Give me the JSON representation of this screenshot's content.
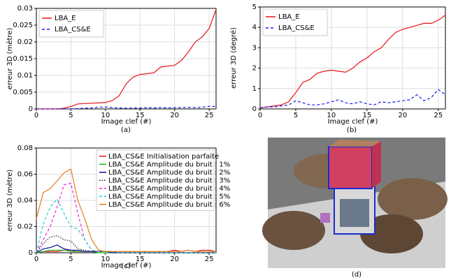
{
  "chart_data": [
    {
      "type": "line",
      "caption": "(a)",
      "x_label": "Image clef (#)",
      "y_label": "erreur 3D (mètre)",
      "x": [
        0,
        1,
        2,
        3,
        4,
        5,
        6,
        7,
        8,
        9,
        10,
        11,
        12,
        13,
        14,
        15,
        16,
        17,
        18,
        19,
        20,
        21,
        22,
        23,
        24,
        25,
        26
      ],
      "xlim": [
        0,
        26
      ],
      "xticks": [
        0,
        5,
        10,
        15,
        20,
        25
      ],
      "ylim": [
        0,
        0.03
      ],
      "yticks": [
        0,
        0.005,
        0.01,
        0.015,
        0.02,
        0.025,
        0.03
      ],
      "grid": true,
      "legend": "upper left",
      "series": [
        {
          "name": "LBA_E",
          "color": "#e8141a",
          "style": "solid",
          "marker": "plus",
          "values": [
            0,
            0,
            0,
            0,
            0.0002,
            0.0007,
            0.0015,
            0.0016,
            0.0017,
            0.0018,
            0.0019,
            0.0025,
            0.004,
            0.0075,
            0.0095,
            0.0103,
            0.0105,
            0.0108,
            0.0125,
            0.0128,
            0.013,
            0.0145,
            0.017,
            0.02,
            0.0215,
            0.024,
            0.0297
          ]
        },
        {
          "name": "LBA_CS&E",
          "color": "#1a1aee",
          "style": "dashed",
          "marker": "x",
          "values": [
            0,
            0,
            0,
            0,
            0,
            0,
            0.0001,
            0.0002,
            0.0003,
            0.0005,
            0.0006,
            0.0004,
            0.0003,
            0.0002,
            0.0003,
            0.0003,
            0.0004,
            0.0003,
            0.0004,
            0.0003,
            0.0004,
            0.0004,
            0.0005,
            0.0004,
            0.0005,
            0.0008,
            0.0007
          ]
        }
      ]
    },
    {
      "type": "line",
      "caption": "(b)",
      "x_label": "Image clef (#)",
      "y_label": "erreur 3D (degré)",
      "x": [
        0,
        1,
        2,
        3,
        4,
        5,
        6,
        7,
        8,
        9,
        10,
        11,
        12,
        13,
        14,
        15,
        16,
        17,
        18,
        19,
        20,
        21,
        22,
        23,
        24,
        25,
        26
      ],
      "xlim": [
        0,
        26
      ],
      "xticks": [
        0,
        5,
        10,
        15,
        20,
        25
      ],
      "ylim": [
        0,
        5
      ],
      "yticks": [
        0,
        1,
        2,
        3,
        4,
        5
      ],
      "grid": true,
      "legend": "upper left",
      "series": [
        {
          "name": "LBA_E",
          "color": "#e8141a",
          "style": "solid",
          "marker": "plus",
          "values": [
            0.05,
            0.1,
            0.15,
            0.2,
            0.35,
            0.8,
            1.3,
            1.45,
            1.75,
            1.85,
            1.9,
            1.85,
            1.8,
            2.0,
            2.3,
            2.5,
            2.8,
            3.0,
            3.4,
            3.75,
            3.9,
            4.0,
            4.1,
            4.2,
            4.2,
            4.35,
            4.6
          ]
        },
        {
          "name": "LBA_CS&E",
          "color": "#1a1aee",
          "style": "dashed",
          "marker": "x",
          "values": [
            0.05,
            0.1,
            0.1,
            0.15,
            0.2,
            0.4,
            0.3,
            0.2,
            0.2,
            0.25,
            0.35,
            0.45,
            0.3,
            0.25,
            0.35,
            0.25,
            0.2,
            0.35,
            0.3,
            0.35,
            0.4,
            0.45,
            0.7,
            0.4,
            0.55,
            0.95,
            0.7
          ]
        }
      ]
    },
    {
      "type": "line",
      "caption": "(c)",
      "x_label": "Image clef (#)",
      "y_label": "erreur 3D (mètre)",
      "x": [
        0,
        1,
        2,
        3,
        4,
        5,
        6,
        7,
        8,
        9,
        10,
        11,
        12,
        13,
        14,
        15,
        16,
        17,
        18,
        19,
        20,
        21,
        22,
        23,
        24,
        25,
        26
      ],
      "xlim": [
        0,
        26
      ],
      "xticks": [
        0,
        5,
        10,
        15,
        20,
        25
      ],
      "ylim": [
        0,
        0.08
      ],
      "yticks": [
        0,
        0.02,
        0.04,
        0.06,
        0.08
      ],
      "grid": true,
      "legend": "upper right",
      "series": [
        {
          "name": "LBA_CS&E Initialisation parfaite",
          "color": "#e8141a",
          "style": "solid",
          "marker": "plus",
          "values": [
            0,
            0.001,
            0.001,
            0.001,
            0.002,
            0.002,
            0.001,
            0.001,
            0.001,
            0.001,
            0.001,
            0.001,
            0.001,
            0.001,
            0.001,
            0.001,
            0.001,
            0.001,
            0.001,
            0.001,
            0.002,
            0.001,
            0.002,
            0.001,
            0.002,
            0.002,
            0.001
          ]
        },
        {
          "name": "LBA_CS&E Amplitude du bruit : 1%",
          "color": "#22bb22",
          "style": "solid",
          "marker": "x",
          "values": [
            0,
            0.001,
            0.002,
            0.002,
            0.002,
            0.001,
            0.001,
            0.001,
            0.001,
            0,
            0,
            0,
            0,
            0,
            0,
            0,
            0,
            0,
            0,
            0,
            0,
            0,
            0,
            0,
            0,
            0,
            0
          ]
        },
        {
          "name": "LBA_CS&E Amplitude du bruit : 2%",
          "color": "#111199",
          "style": "solid",
          "marker": "dot",
          "values": [
            0,
            0.003,
            0.004,
            0.006,
            0.003,
            0.002,
            0.002,
            0.001,
            0.001,
            0.001,
            0.001,
            0,
            0,
            0,
            0,
            0,
            0,
            0,
            0,
            0,
            0,
            0,
            0,
            0,
            0,
            0,
            0
          ]
        },
        {
          "name": "LBA_CS&E Amplitude du bruit : 3%",
          "color": "#222222",
          "style": "dotted",
          "marker": "dot",
          "values": [
            0,
            0.007,
            0.012,
            0.013,
            0.01,
            0.009,
            0.003,
            0.002,
            0.001,
            0.001,
            0.001,
            0.001,
            0,
            0,
            0,
            0,
            0,
            0,
            0,
            0,
            0,
            0,
            0,
            0,
            0,
            0,
            0
          ]
        },
        {
          "name": "LBA_CS&E Amplitude du bruit : 4%",
          "color": "#ee22ee",
          "style": "dashed",
          "marker": "dot",
          "values": [
            0,
            0.01,
            0.02,
            0.035,
            0.052,
            0.053,
            0.03,
            0.01,
            0.002,
            0.001,
            0.001,
            0.001,
            0,
            0,
            0,
            0,
            0,
            0,
            0,
            0,
            0,
            0,
            0,
            0,
            0,
            0,
            0
          ]
        },
        {
          "name": "LBA_CS&E Amplitude du bruit : 5%",
          "color": "#22cccc",
          "style": "dashed",
          "marker": "dot",
          "values": [
            0,
            0.022,
            0.035,
            0.041,
            0.03,
            0.02,
            0.018,
            0.01,
            0.002,
            0.001,
            0.001,
            0.001,
            0,
            0,
            0,
            0,
            0,
            0,
            0,
            0,
            0,
            0,
            0,
            0,
            0,
            0,
            0
          ]
        },
        {
          "name": "LBA_CS&E Amplitude du bruit : 6%",
          "color": "#e08020",
          "style": "solid",
          "marker": "none",
          "values": [
            0.026,
            0.046,
            0.049,
            0.055,
            0.061,
            0.064,
            0.04,
            0.026,
            0.01,
            0.002,
            0.001,
            0.001,
            0.001,
            0.001,
            0.001,
            0.001,
            0.001,
            0.001,
            0.001,
            0.001,
            0.001,
            0.001,
            0.002,
            0.001,
            0.001,
            0.001,
            0.001
          ]
        }
      ]
    }
  ],
  "image_panel": {
    "caption": "(d)"
  }
}
